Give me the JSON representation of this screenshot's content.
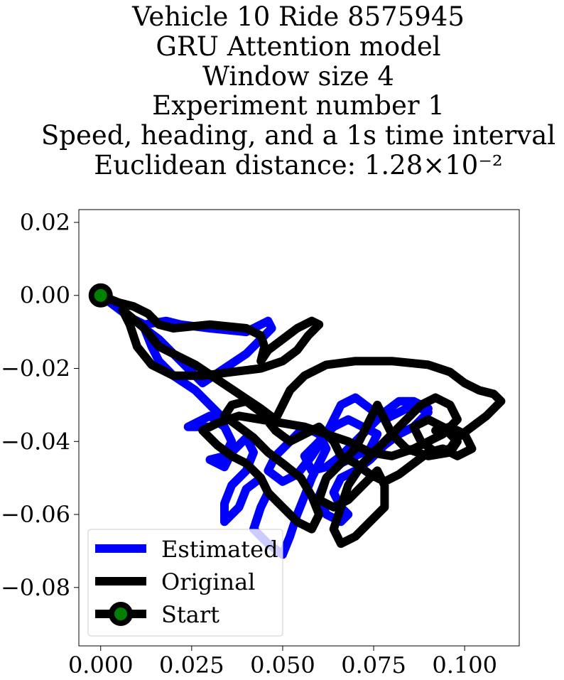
{
  "chart_data": {
    "type": "line",
    "title_lines": [
      "Vehicle 10 Ride 8575945",
      "GRU Attention model",
      "Window size 4",
      "Experiment number 1",
      "Speed, heading, and a 1s time interval",
      "Euclidean distance: 1.28×10⁻²"
    ],
    "xlim": [
      -0.006,
      0.115
    ],
    "ylim": [
      -0.096,
      0.0235
    ],
    "x_ticks": [
      0.0,
      0.025,
      0.05,
      0.075,
      0.1
    ],
    "x_tick_labels": [
      "0.000",
      "0.025",
      "0.050",
      "0.075",
      "0.100"
    ],
    "y_ticks": [
      0.02,
      0.0,
      -0.02,
      -0.04,
      -0.06,
      -0.08
    ],
    "y_tick_labels": [
      "0.02",
      "0.00",
      "−0.02",
      "−0.04",
      "−0.06",
      "−0.08"
    ],
    "legend_position": "lower-left",
    "series": [
      {
        "name": "Estimated",
        "color": "#0000ff",
        "points": [
          [
            0.0,
            0.0
          ],
          [
            0.008,
            -0.006
          ],
          [
            0.012,
            -0.008
          ],
          [
            0.018,
            -0.007
          ],
          [
            0.022,
            -0.008
          ],
          [
            0.03,
            -0.009
          ],
          [
            0.04,
            -0.01
          ],
          [
            0.044,
            -0.008
          ],
          [
            0.046,
            -0.007
          ],
          [
            0.047,
            -0.009
          ],
          [
            0.044,
            -0.012
          ],
          [
            0.04,
            -0.016
          ],
          [
            0.034,
            -0.02
          ],
          [
            0.028,
            -0.024
          ],
          [
            0.024,
            -0.02
          ],
          [
            0.02,
            -0.016
          ],
          [
            0.016,
            -0.012
          ],
          [
            0.012,
            -0.009
          ],
          [
            0.014,
            -0.014
          ],
          [
            0.016,
            -0.018
          ],
          [
            0.02,
            -0.022
          ],
          [
            0.026,
            -0.026
          ],
          [
            0.03,
            -0.03
          ],
          [
            0.034,
            -0.034
          ],
          [
            0.03,
            -0.036
          ],
          [
            0.024,
            -0.036
          ],
          [
            0.03,
            -0.033
          ],
          [
            0.034,
            -0.036
          ],
          [
            0.036,
            -0.04
          ],
          [
            0.034,
            -0.044
          ],
          [
            0.03,
            -0.045
          ],
          [
            0.034,
            -0.047
          ],
          [
            0.036,
            -0.043
          ],
          [
            0.04,
            -0.039
          ],
          [
            0.042,
            -0.043
          ],
          [
            0.04,
            -0.048
          ],
          [
            0.036,
            -0.052
          ],
          [
            0.034,
            -0.057
          ],
          [
            0.034,
            -0.062
          ],
          [
            0.038,
            -0.058
          ],
          [
            0.04,
            -0.053
          ],
          [
            0.044,
            -0.05
          ],
          [
            0.046,
            -0.054
          ],
          [
            0.044,
            -0.058
          ],
          [
            0.042,
            -0.064
          ],
          [
            0.046,
            -0.068
          ],
          [
            0.05,
            -0.071
          ],
          [
            0.052,
            -0.066
          ],
          [
            0.054,
            -0.06
          ],
          [
            0.056,
            -0.055
          ],
          [
            0.058,
            -0.05
          ],
          [
            0.06,
            -0.046
          ],
          [
            0.062,
            -0.042
          ],
          [
            0.06,
            -0.038
          ],
          [
            0.056,
            -0.036
          ],
          [
            0.052,
            -0.04
          ],
          [
            0.048,
            -0.044
          ],
          [
            0.046,
            -0.048
          ],
          [
            0.05,
            -0.051
          ],
          [
            0.054,
            -0.049
          ],
          [
            0.058,
            -0.044
          ],
          [
            0.062,
            -0.038
          ],
          [
            0.064,
            -0.034
          ],
          [
            0.066,
            -0.03
          ],
          [
            0.07,
            -0.028
          ],
          [
            0.074,
            -0.031
          ],
          [
            0.078,
            -0.034
          ],
          [
            0.082,
            -0.032
          ],
          [
            0.086,
            -0.03
          ],
          [
            0.09,
            -0.032
          ],
          [
            0.086,
            -0.036
          ],
          [
            0.082,
            -0.038
          ],
          [
            0.078,
            -0.041
          ],
          [
            0.074,
            -0.045
          ],
          [
            0.07,
            -0.048
          ],
          [
            0.066,
            -0.05
          ],
          [
            0.064,
            -0.054
          ],
          [
            0.066,
            -0.058
          ],
          [
            0.068,
            -0.06
          ],
          [
            0.066,
            -0.062
          ],
          [
            0.062,
            -0.06
          ],
          [
            0.06,
            -0.055
          ],
          [
            0.062,
            -0.05
          ],
          [
            0.066,
            -0.046
          ],
          [
            0.07,
            -0.044
          ],
          [
            0.074,
            -0.042
          ],
          [
            0.076,
            -0.038
          ],
          [
            0.072,
            -0.036
          ],
          [
            0.068,
            -0.034
          ],
          [
            0.064,
            -0.036
          ],
          [
            0.06,
            -0.04
          ],
          [
            0.056,
            -0.044
          ],
          [
            0.058,
            -0.048
          ],
          [
            0.062,
            -0.047
          ],
          [
            0.066,
            -0.044
          ],
          [
            0.07,
            -0.04
          ],
          [
            0.074,
            -0.036
          ],
          [
            0.078,
            -0.032
          ],
          [
            0.082,
            -0.029
          ],
          [
            0.086,
            -0.029
          ],
          [
            0.09,
            -0.031
          ]
        ]
      },
      {
        "name": "Original",
        "color": "#000000",
        "points": [
          [
            0.0,
            0.0
          ],
          [
            0.005,
            -0.002
          ],
          [
            0.009,
            -0.003
          ],
          [
            0.013,
            -0.005
          ],
          [
            0.016,
            -0.008
          ],
          [
            0.02,
            -0.009
          ],
          [
            0.03,
            -0.008
          ],
          [
            0.04,
            -0.009
          ],
          [
            0.044,
            -0.011
          ],
          [
            0.045,
            -0.014
          ],
          [
            0.044,
            -0.018
          ],
          [
            0.046,
            -0.015
          ],
          [
            0.05,
            -0.012
          ],
          [
            0.054,
            -0.009
          ],
          [
            0.058,
            -0.007
          ],
          [
            0.06,
            -0.008
          ],
          [
            0.057,
            -0.011
          ],
          [
            0.054,
            -0.015
          ],
          [
            0.05,
            -0.018
          ],
          [
            0.044,
            -0.02
          ],
          [
            0.036,
            -0.021
          ],
          [
            0.028,
            -0.022
          ],
          [
            0.02,
            -0.022
          ],
          [
            0.014,
            -0.019
          ],
          [
            0.01,
            -0.014
          ],
          [
            0.008,
            -0.008
          ],
          [
            0.006,
            -0.004
          ],
          [
            0.012,
            -0.009
          ],
          [
            0.016,
            -0.014
          ],
          [
            0.02,
            -0.016
          ],
          [
            0.026,
            -0.019
          ],
          [
            0.032,
            -0.023
          ],
          [
            0.038,
            -0.027
          ],
          [
            0.044,
            -0.031
          ],
          [
            0.048,
            -0.034
          ],
          [
            0.05,
            -0.03
          ],
          [
            0.052,
            -0.026
          ],
          [
            0.056,
            -0.022
          ],
          [
            0.062,
            -0.019
          ],
          [
            0.07,
            -0.018
          ],
          [
            0.08,
            -0.018
          ],
          [
            0.09,
            -0.019
          ],
          [
            0.096,
            -0.021
          ],
          [
            0.1,
            -0.024
          ],
          [
            0.104,
            -0.026
          ],
          [
            0.108,
            -0.027
          ],
          [
            0.11,
            -0.029
          ],
          [
            0.106,
            -0.033
          ],
          [
            0.102,
            -0.036
          ],
          [
            0.098,
            -0.039
          ],
          [
            0.096,
            -0.042
          ],
          [
            0.092,
            -0.043
          ],
          [
            0.088,
            -0.04
          ],
          [
            0.086,
            -0.036
          ],
          [
            0.09,
            -0.034
          ],
          [
            0.094,
            -0.036
          ],
          [
            0.098,
            -0.04
          ],
          [
            0.096,
            -0.043
          ],
          [
            0.09,
            -0.044
          ],
          [
            0.084,
            -0.042
          ],
          [
            0.08,
            -0.038
          ],
          [
            0.078,
            -0.034
          ],
          [
            0.076,
            -0.03
          ],
          [
            0.074,
            -0.034
          ],
          [
            0.072,
            -0.038
          ],
          [
            0.07,
            -0.042
          ],
          [
            0.066,
            -0.046
          ],
          [
            0.062,
            -0.05
          ],
          [
            0.06,
            -0.056
          ],
          [
            0.064,
            -0.058
          ],
          [
            0.068,
            -0.056
          ],
          [
            0.072,
            -0.052
          ],
          [
            0.076,
            -0.048
          ],
          [
            0.078,
            -0.052
          ],
          [
            0.078,
            -0.058
          ],
          [
            0.074,
            -0.062
          ],
          [
            0.07,
            -0.066
          ],
          [
            0.066,
            -0.068
          ],
          [
            0.064,
            -0.064
          ],
          [
            0.066,
            -0.058
          ],
          [
            0.068,
            -0.052
          ],
          [
            0.072,
            -0.046
          ],
          [
            0.076,
            -0.042
          ],
          [
            0.08,
            -0.038
          ],
          [
            0.084,
            -0.034
          ],
          [
            0.088,
            -0.03
          ],
          [
            0.092,
            -0.028
          ],
          [
            0.096,
            -0.03
          ],
          [
            0.098,
            -0.034
          ],
          [
            0.094,
            -0.038
          ],
          [
            0.09,
            -0.04
          ],
          [
            0.086,
            -0.042
          ],
          [
            0.08,
            -0.044
          ],
          [
            0.074,
            -0.043
          ],
          [
            0.068,
            -0.04
          ],
          [
            0.062,
            -0.038
          ],
          [
            0.056,
            -0.036
          ],
          [
            0.05,
            -0.035
          ],
          [
            0.044,
            -0.034
          ],
          [
            0.038,
            -0.033
          ],
          [
            0.032,
            -0.035
          ],
          [
            0.028,
            -0.037
          ],
          [
            0.032,
            -0.041
          ],
          [
            0.036,
            -0.044
          ],
          [
            0.04,
            -0.046
          ],
          [
            0.044,
            -0.05
          ],
          [
            0.046,
            -0.054
          ],
          [
            0.05,
            -0.058
          ],
          [
            0.054,
            -0.062
          ],
          [
            0.058,
            -0.064
          ],
          [
            0.06,
            -0.06
          ],
          [
            0.058,
            -0.055
          ],
          [
            0.055,
            -0.05
          ],
          [
            0.05,
            -0.046
          ],
          [
            0.046,
            -0.043
          ],
          [
            0.042,
            -0.039
          ],
          [
            0.038,
            -0.036
          ],
          [
            0.034,
            -0.033
          ],
          [
            0.036,
            -0.03
          ],
          [
            0.04,
            -0.029
          ],
          [
            0.044,
            -0.032
          ],
          [
            0.048,
            -0.037
          ],
          [
            0.052,
            -0.04
          ],
          [
            0.056,
            -0.038
          ],
          [
            0.06,
            -0.036
          ],
          [
            0.064,
            -0.04
          ],
          [
            0.066,
            -0.044
          ],
          [
            0.07,
            -0.046
          ],
          [
            0.074,
            -0.049
          ],
          [
            0.078,
            -0.051
          ],
          [
            0.082,
            -0.049
          ],
          [
            0.086,
            -0.046
          ],
          [
            0.09,
            -0.043
          ],
          [
            0.094,
            -0.042
          ],
          [
            0.098,
            -0.044
          ],
          [
            0.102,
            -0.042
          ],
          [
            0.1,
            -0.038
          ],
          [
            0.096,
            -0.036
          ],
          [
            0.092,
            -0.037
          ]
        ]
      },
      {
        "name": "Start",
        "color": "#000000",
        "marker_color": "#008000",
        "points": [
          [
            0.0,
            0.0
          ]
        ]
      }
    ]
  }
}
